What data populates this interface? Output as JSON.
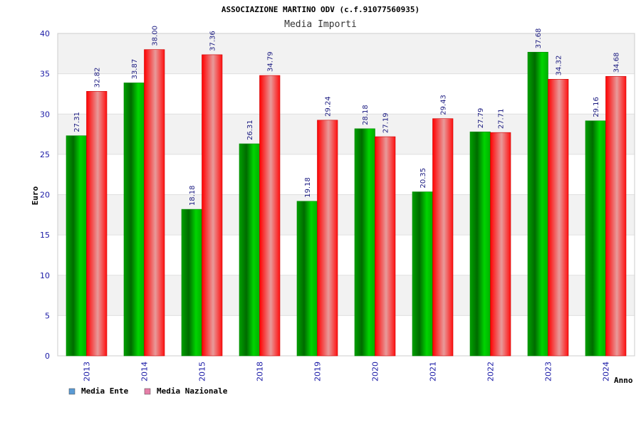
{
  "chart_data": {
    "type": "bar",
    "title": "ASSOCIAZIONE MARTINO ODV (c.f.91077560935)",
    "subtitle": "Media Importi",
    "xlabel": "Anno",
    "ylabel": "Euro",
    "ylim": [
      0,
      40
    ],
    "yticks": [
      0,
      5,
      10,
      15,
      20,
      25,
      30,
      35,
      40
    ],
    "grid": true,
    "legend_position": "bottom-left",
    "categories": [
      "2013",
      "2014",
      "2015",
      "2018",
      "2019",
      "2020",
      "2021",
      "2022",
      "2023",
      "2024"
    ],
    "series": [
      {
        "name": "Media Ente",
        "color": "#00c000",
        "legend_color": "#5b9bd5",
        "values": [
          27.31,
          33.87,
          18.18,
          26.31,
          19.18,
          28.18,
          20.35,
          27.79,
          37.68,
          29.16
        ],
        "labels": [
          "27.31",
          "33.87",
          "18.18",
          "26.31",
          "19.18",
          "28.18",
          "20.35",
          "27.79",
          "37.68",
          "29.16"
        ]
      },
      {
        "name": "Media Nazionale",
        "color": "#ff0000",
        "legend_color": "#e67ea8",
        "values": [
          32.82,
          38.0,
          37.36,
          34.79,
          29.24,
          27.19,
          29.43,
          27.71,
          34.32,
          34.68
        ],
        "labels": [
          "32.82",
          "38.00",
          "37.36",
          "34.79",
          "29.24",
          "27.19",
          "29.43",
          "27.71",
          "34.32",
          "34.68"
        ]
      }
    ]
  }
}
